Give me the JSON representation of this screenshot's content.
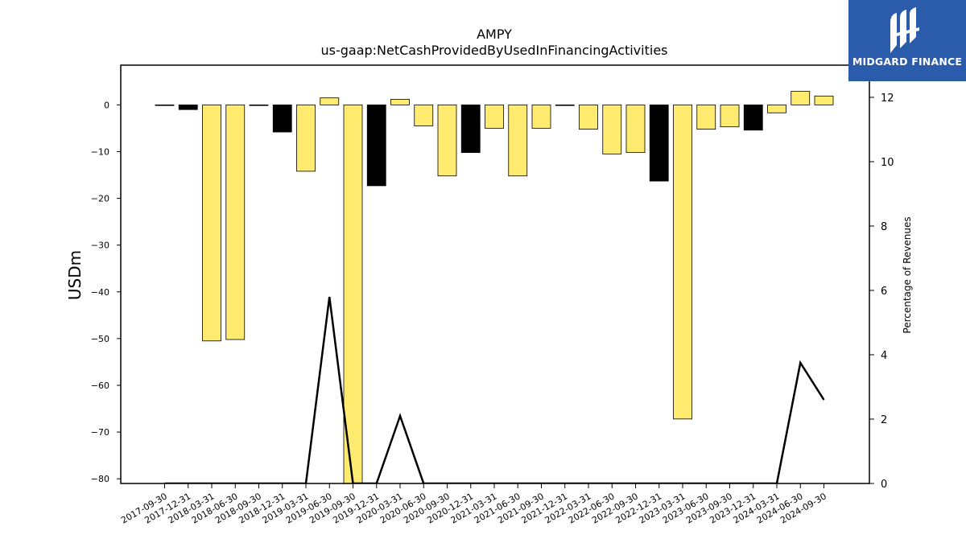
{
  "logo": {
    "text": "MIDGARD FINANCE",
    "icon": "midgard-logo-icon",
    "color": "#2b5cab"
  },
  "chart_data": {
    "type": "bar",
    "title": "AMPY",
    "subtitle": "us-gaap:NetCashProvidedByUsedInFinancingActivities",
    "ylabel": "USDm",
    "y2label": "Percentage of Revenues",
    "ylim": [
      -81,
      8.5
    ],
    "y2lim": [
      0,
      13.0
    ],
    "yticks": [
      0,
      -10,
      -20,
      -30,
      -40,
      -50,
      -60,
      -70,
      -80
    ],
    "y2ticks": [
      0,
      2,
      4,
      6,
      8,
      10,
      12
    ],
    "categories": [
      "2017-09-30",
      "2017-12-31",
      "2018-03-31",
      "2018-06-30",
      "2018-09-30",
      "2018-12-31",
      "2019-03-31",
      "2019-06-30",
      "2019-09-30",
      "2019-12-31",
      "2020-03-31",
      "2020-06-30",
      "2020-09-30",
      "2020-12-31",
      "2021-03-31",
      "2021-06-30",
      "2021-09-30",
      "2021-12-31",
      "2022-03-31",
      "2022-06-30",
      "2022-09-30",
      "2022-12-31",
      "2023-03-31",
      "2023-06-30",
      "2023-09-30",
      "2023-12-31",
      "2024-03-31",
      "2024-06-30",
      "2024-09-30"
    ],
    "series": [
      {
        "type": "bar",
        "values": [
          0,
          -1.0,
          -50.5,
          -50.2,
          0,
          -5.8,
          -14.2,
          1.5,
          -85,
          -17.3,
          1.2,
          -4.5,
          -15.2,
          -10.2,
          -5.0,
          -15.2,
          -5.0,
          0,
          -5.2,
          -10.5,
          -10.2,
          -16.3,
          -67.2,
          -5.2,
          -4.7,
          -5.4,
          -1.7,
          2.9,
          1.9
        ],
        "colors": [
          "#000000",
          "#000000",
          "#ffeb70",
          "#ffeb70",
          "#000000",
          "#000000",
          "#ffeb70",
          "#ffeb70",
          "#ffeb70",
          "#000000",
          "#ffeb70",
          "#ffeb70",
          "#ffeb70",
          "#000000",
          "#ffeb70",
          "#ffeb70",
          "#ffeb70",
          "#000000",
          "#ffeb70",
          "#ffeb70",
          "#ffeb70",
          "#000000",
          "#ffeb70",
          "#ffeb70",
          "#ffeb70",
          "#000000",
          "#ffeb70",
          "#ffeb70",
          "#ffeb70"
        ]
      },
      {
        "type": "line",
        "axis": "right",
        "color": "#000000",
        "values": [
          0,
          0,
          0,
          0,
          0,
          0,
          0,
          5.8,
          0,
          0,
          2.1,
          0,
          0,
          0,
          0,
          0,
          0,
          0,
          0,
          0,
          0,
          0,
          0,
          0,
          0,
          0,
          0,
          3.75,
          2.6
        ]
      }
    ],
    "grid": false,
    "legend": "none"
  }
}
